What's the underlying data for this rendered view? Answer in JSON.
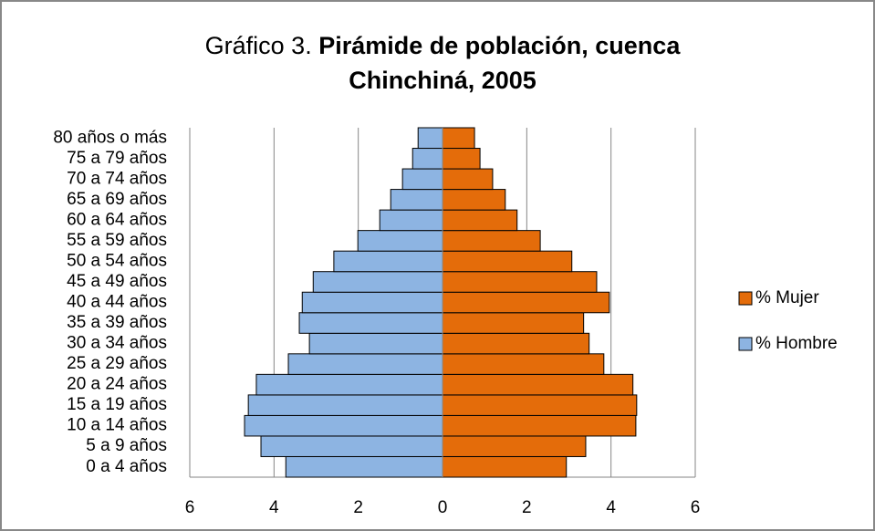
{
  "chart_data": {
    "type": "bar",
    "orientation": "horizontal",
    "title": [
      "Gráfico 3.",
      "Pirámide de población, cuenca",
      "Chinchiná, 2005"
    ],
    "categories": [
      "0 a 4 años",
      "5 a 9 años",
      "10 a 14 años",
      "15 a 19 años",
      "20 a 24 años",
      "25 a 29 años",
      "30 a 34 años",
      "35 a 39 años",
      "40 a 44 años",
      "45 a 49 años",
      "50 a 54 años",
      "55 a 59 años",
      "60 a 64 años",
      "65 a 69 años",
      "70 a 74 años",
      "75 a 79 años",
      "80 años o más"
    ],
    "series": [
      {
        "name": "% Mujer",
        "color": "#e46c0a",
        "values": [
          2.94,
          3.4,
          4.59,
          4.61,
          4.52,
          3.83,
          3.48,
          3.35,
          3.96,
          3.66,
          3.07,
          2.32,
          1.77,
          1.49,
          1.19,
          0.89,
          0.76
        ]
      },
      {
        "name": "% Hombre",
        "color": "#8db4e2",
        "values": [
          -3.72,
          -4.31,
          -4.7,
          -4.61,
          -4.42,
          -3.66,
          -3.16,
          -3.4,
          -3.33,
          -3.07,
          -2.58,
          -2.01,
          -1.49,
          -1.23,
          -0.95,
          -0.71,
          -0.58
        ]
      }
    ],
    "xlim": [
      -6,
      6
    ],
    "xticks": [
      {
        "value": -6,
        "label": "6"
      },
      {
        "value": -4,
        "label": "4"
      },
      {
        "value": -2,
        "label": "2"
      },
      0,
      2,
      4,
      6
    ],
    "grid": true,
    "legend": "right"
  }
}
